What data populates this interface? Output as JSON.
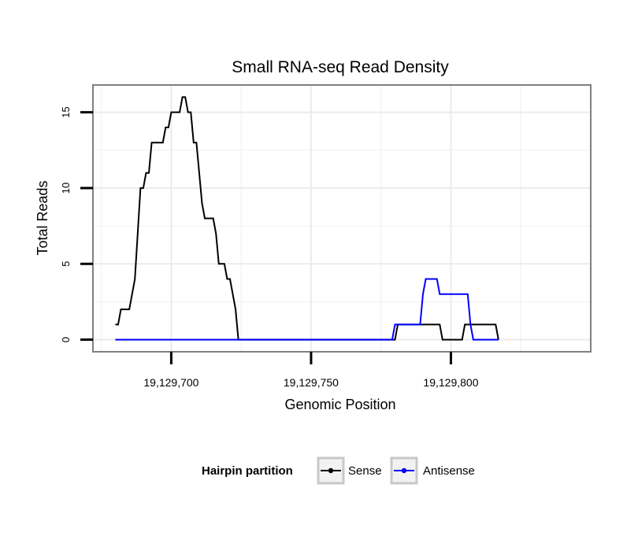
{
  "chart_data": {
    "type": "line",
    "title": "Small RNA-seq Read Density",
    "xlabel": "Genomic Position",
    "ylabel": "Total Reads",
    "xlim": [
      19129672,
      19129850
    ],
    "ylim": [
      -0.8,
      16.8
    ],
    "x_ticks": [
      19129700,
      19129750,
      19129800
    ],
    "x_tick_labels": [
      "19,129,700",
      "19,129,750",
      "19,129,800"
    ],
    "y_ticks": [
      0,
      5,
      10,
      15
    ],
    "y_tick_labels": [
      "0",
      "5",
      "10",
      "15"
    ],
    "grid": true,
    "legend": {
      "title": "Hairpin partition",
      "position": "bottom",
      "entries": [
        "Sense",
        "Antisense"
      ]
    },
    "series": [
      {
        "name": "Sense",
        "color": "#000000",
        "points": [
          [
            19129680,
            1
          ],
          [
            19129681,
            1
          ],
          [
            19129682,
            2
          ],
          [
            19129683,
            2
          ],
          [
            19129684,
            2
          ],
          [
            19129685,
            2
          ],
          [
            19129686,
            3
          ],
          [
            19129687,
            4
          ],
          [
            19129688,
            7
          ],
          [
            19129689,
            10
          ],
          [
            19129690,
            10
          ],
          [
            19129691,
            11
          ],
          [
            19129692,
            11
          ],
          [
            19129693,
            13
          ],
          [
            19129694,
            13
          ],
          [
            19129695,
            13
          ],
          [
            19129696,
            13
          ],
          [
            19129697,
            13
          ],
          [
            19129698,
            14
          ],
          [
            19129699,
            14
          ],
          [
            19129700,
            15
          ],
          [
            19129701,
            15
          ],
          [
            19129702,
            15
          ],
          [
            19129703,
            15
          ],
          [
            19129704,
            16
          ],
          [
            19129705,
            16
          ],
          [
            19129706,
            15
          ],
          [
            19129707,
            15
          ],
          [
            19129708,
            13
          ],
          [
            19129709,
            13
          ],
          [
            19129710,
            11
          ],
          [
            19129711,
            9
          ],
          [
            19129712,
            8
          ],
          [
            19129713,
            8
          ],
          [
            19129714,
            8
          ],
          [
            19129715,
            8
          ],
          [
            19129716,
            7
          ],
          [
            19129717,
            5
          ],
          [
            19129718,
            5
          ],
          [
            19129719,
            5
          ],
          [
            19129720,
            4
          ],
          [
            19129721,
            4
          ],
          [
            19129722,
            3
          ],
          [
            19129723,
            2
          ],
          [
            19129724,
            0
          ],
          [
            19129740,
            0
          ],
          [
            19129760,
            0
          ],
          [
            19129779,
            0
          ],
          [
            19129780,
            0
          ],
          [
            19129781,
            1
          ],
          [
            19129782,
            1
          ],
          [
            19129790,
            1
          ],
          [
            19129795,
            1
          ],
          [
            19129796,
            1
          ],
          [
            19129797,
            0
          ],
          [
            19129803,
            0
          ],
          [
            19129804,
            0
          ],
          [
            19129805,
            1
          ],
          [
            19129815,
            1
          ],
          [
            19129816,
            1
          ],
          [
            19129817,
            0
          ]
        ]
      },
      {
        "name": "Antisense",
        "color": "#0000ff",
        "points": [
          [
            19129680,
            0
          ],
          [
            19129700,
            0
          ],
          [
            19129724,
            0
          ],
          [
            19129750,
            0
          ],
          [
            19129779,
            0
          ],
          [
            19129780,
            1
          ],
          [
            19129788,
            1
          ],
          [
            19129789,
            1
          ],
          [
            19129790,
            3
          ],
          [
            19129791,
            4
          ],
          [
            19129795,
            4
          ],
          [
            19129796,
            3
          ],
          [
            19129805,
            3
          ],
          [
            19129806,
            3
          ],
          [
            19129807,
            1
          ],
          [
            19129808,
            0
          ],
          [
            19129816,
            0
          ],
          [
            19129817,
            0
          ]
        ]
      }
    ]
  }
}
